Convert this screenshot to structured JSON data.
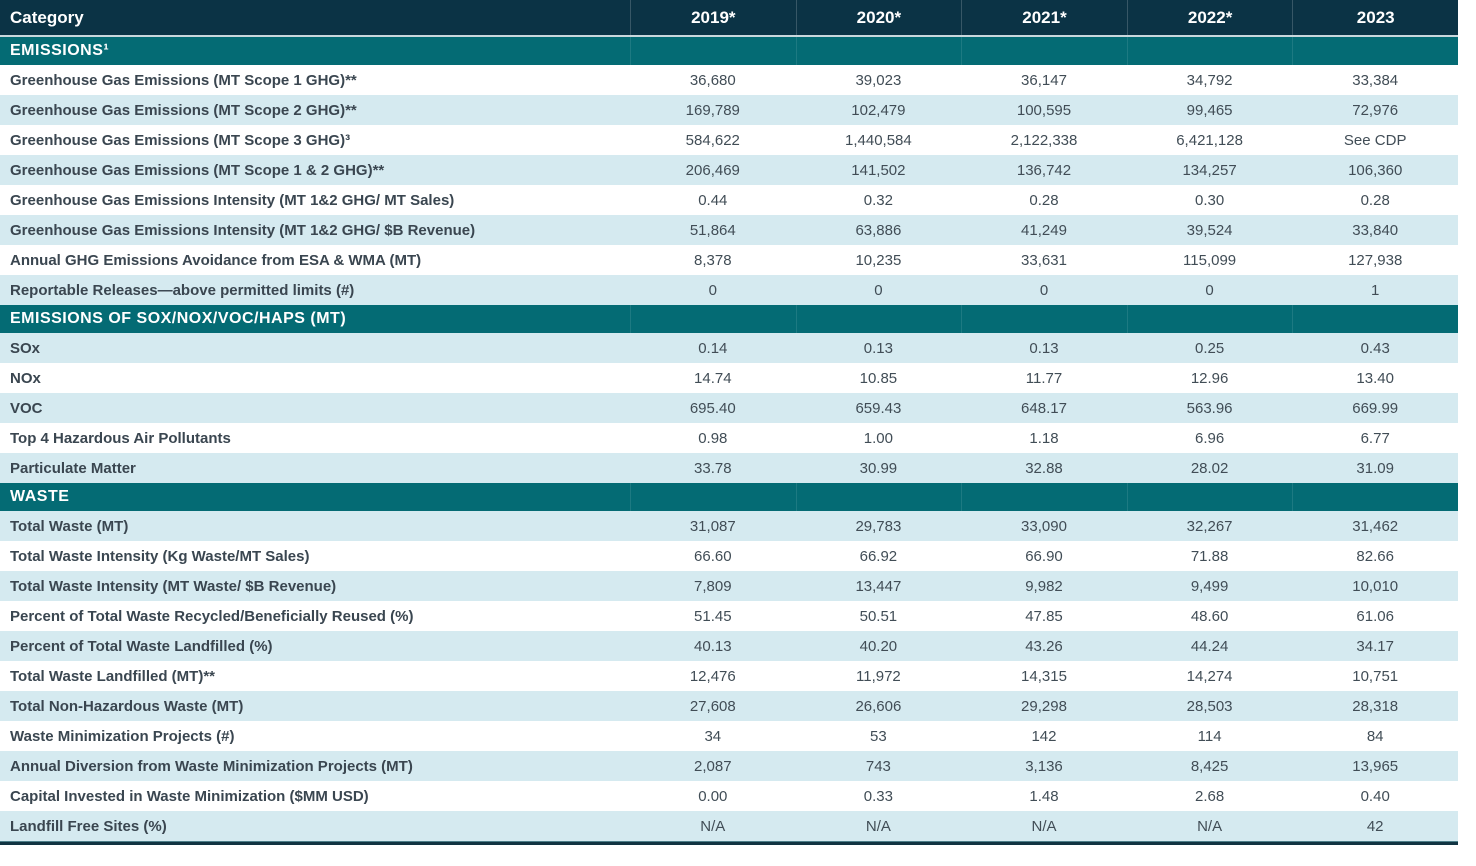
{
  "colors": {
    "header_bg": "#0b3345",
    "section_bg": "#046b74",
    "row_tint": "#d5eaf0",
    "row_white": "#ffffff",
    "label_text": "#3a4650",
    "value_text": "#414d56",
    "header_text": "#ffffff",
    "bottom_rule": "#113442"
  },
  "chart_data": {
    "type": "table",
    "columns": [
      "Category",
      "2019*",
      "2020*",
      "2021*",
      "2022*",
      "2023"
    ],
    "sections": [
      {
        "title": "EMISSIONS¹",
        "first_row_tinted": false,
        "rows": [
          {
            "label": "Greenhouse Gas Emissions (MT Scope 1 GHG)**",
            "values": [
              "36,680",
              "39,023",
              "36,147",
              "34,792",
              "33,384"
            ]
          },
          {
            "label": "Greenhouse Gas Emissions (MT Scope 2 GHG)**",
            "values": [
              "169,789",
              "102,479",
              "100,595",
              "99,465",
              "72,976"
            ]
          },
          {
            "label": "Greenhouse Gas Emissions (MT Scope 3 GHG)³",
            "values": [
              "584,622",
              "1,440,584",
              "2,122,338",
              "6,421,128",
              "See CDP"
            ]
          },
          {
            "label": "Greenhouse Gas Emissions (MT Scope 1 & 2 GHG)**",
            "values": [
              "206,469",
              "141,502",
              "136,742",
              "134,257",
              "106,360"
            ]
          },
          {
            "label": "Greenhouse Gas Emissions Intensity (MT 1&2 GHG/ MT Sales)",
            "values": [
              "0.44",
              "0.32",
              "0.28",
              "0.30",
              "0.28"
            ]
          },
          {
            "label": "Greenhouse Gas Emissions Intensity (MT 1&2 GHG/ $B Revenue)",
            "values": [
              "51,864",
              "63,886",
              "41,249",
              "39,524",
              "33,840"
            ]
          },
          {
            "label": "Annual GHG Emissions Avoidance from ESA & WMA (MT)",
            "values": [
              "8,378",
              "10,235",
              "33,631",
              "115,099",
              "127,938"
            ]
          },
          {
            "label": "Reportable Releases—above permitted limits (#)",
            "values": [
              "0",
              "0",
              "0",
              "0",
              "1"
            ]
          }
        ]
      },
      {
        "title": "EMISSIONS OF SOX/NOX/VOC/HAPS (MT)",
        "first_row_tinted": true,
        "rows": [
          {
            "label": "SOx",
            "values": [
              "0.14",
              "0.13",
              "0.13",
              "0.25",
              "0.43"
            ]
          },
          {
            "label": "NOx",
            "values": [
              "14.74",
              "10.85",
              "11.77",
              "12.96",
              "13.40"
            ]
          },
          {
            "label": "VOC",
            "values": [
              "695.40",
              "659.43",
              "648.17",
              "563.96",
              "669.99"
            ]
          },
          {
            "label": "Top 4 Hazardous Air Pollutants",
            "values": [
              "0.98",
              "1.00",
              "1.18",
              "6.96",
              "6.77"
            ]
          },
          {
            "label": "Particulate Matter",
            "values": [
              "33.78",
              "30.99",
              "32.88",
              "28.02",
              "31.09"
            ]
          }
        ]
      },
      {
        "title": "WASTE",
        "first_row_tinted": true,
        "rows": [
          {
            "label": "Total Waste (MT)",
            "values": [
              "31,087",
              "29,783",
              "33,090",
              "32,267",
              "31,462"
            ]
          },
          {
            "label": "Total Waste Intensity (Kg Waste/MT Sales)",
            "values": [
              "66.60",
              "66.92",
              "66.90",
              "71.88",
              "82.66"
            ]
          },
          {
            "label": "Total Waste Intensity (MT Waste/ $B Revenue)",
            "values": [
              "7,809",
              "13,447",
              "9,982",
              "9,499",
              "10,010"
            ]
          },
          {
            "label": "Percent of Total Waste Recycled/Beneficially Reused (%)",
            "values": [
              "51.45",
              "50.51",
              "47.85",
              "48.60",
              "61.06"
            ]
          },
          {
            "label": "Percent of Total Waste Landfilled (%)",
            "values": [
              "40.13",
              "40.20",
              "43.26",
              "44.24",
              "34.17"
            ]
          },
          {
            "label": "Total Waste Landfilled (MT)**",
            "values": [
              "12,476",
              "11,972",
              "14,315",
              "14,274",
              "10,751"
            ]
          },
          {
            "label": "Total Non-Hazardous Waste (MT)",
            "values": [
              "27,608",
              "26,606",
              "29,298",
              "28,503",
              "28,318"
            ]
          },
          {
            "label": "Waste Minimization Projects (#)",
            "values": [
              "34",
              "53",
              "142",
              "114",
              "84"
            ]
          },
          {
            "label": "Annual Diversion from Waste Minimization Projects (MT)",
            "values": [
              "2,087",
              "743",
              "3,136",
              "8,425",
              "13,965"
            ]
          },
          {
            "label": "Capital Invested in Waste Minimization ($MM USD)",
            "values": [
              "0.00",
              "0.33",
              "1.48",
              "2.68",
              "0.40"
            ]
          },
          {
            "label": "Landfill Free Sites (%)",
            "values": [
              "N/A",
              "N/A",
              "N/A",
              "N/A",
              "42"
            ]
          }
        ]
      }
    ]
  }
}
